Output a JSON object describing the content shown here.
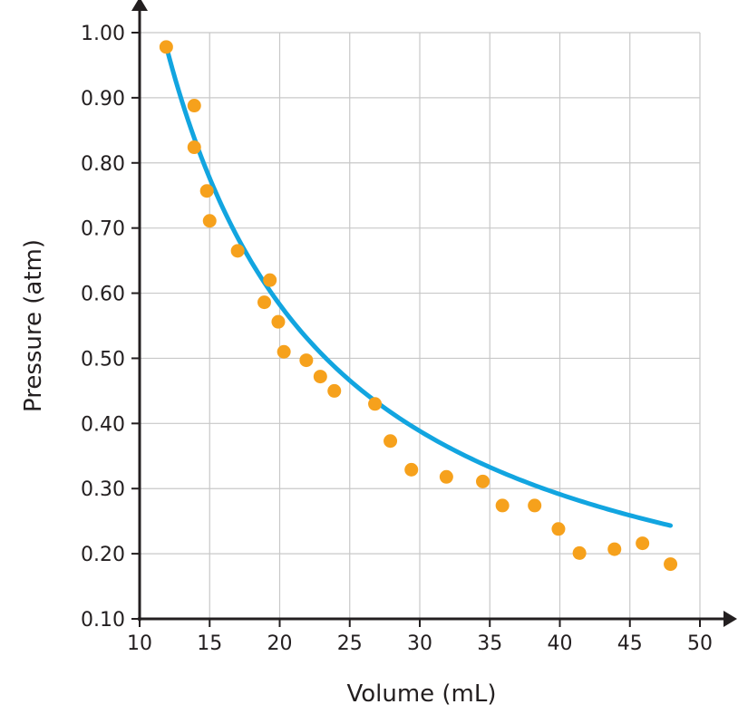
{
  "chart_data": {
    "type": "scatter",
    "xlabel": "Volume (mL)",
    "ylabel": "Pressure (atm)",
    "xlim": [
      10,
      50
    ],
    "ylim": [
      0.1,
      1.0
    ],
    "x_ticks": [
      "10",
      "15",
      "20",
      "25",
      "30",
      "35",
      "40",
      "45",
      "50"
    ],
    "y_ticks": [
      "0.10",
      "0.20",
      "0.30",
      "0.40",
      "0.50",
      "0.60",
      "0.70",
      "0.80",
      "0.90",
      "1.00"
    ],
    "grid": true,
    "points": [
      [
        11.9,
        0.978
      ],
      [
        13.9,
        0.888
      ],
      [
        13.9,
        0.824
      ],
      [
        14.8,
        0.757
      ],
      [
        15.0,
        0.711
      ],
      [
        17.0,
        0.665
      ],
      [
        18.9,
        0.586
      ],
      [
        19.3,
        0.62
      ],
      [
        19.9,
        0.556
      ],
      [
        20.3,
        0.51
      ],
      [
        21.9,
        0.497
      ],
      [
        22.9,
        0.472
      ],
      [
        23.9,
        0.45
      ],
      [
        26.8,
        0.43
      ],
      [
        27.9,
        0.373
      ],
      [
        29.4,
        0.329
      ],
      [
        31.9,
        0.318
      ],
      [
        34.5,
        0.311
      ],
      [
        35.9,
        0.274
      ],
      [
        38.2,
        0.274
      ],
      [
        39.9,
        0.238
      ],
      [
        41.4,
        0.201
      ],
      [
        43.9,
        0.207
      ],
      [
        45.9,
        0.216
      ],
      [
        47.9,
        0.184
      ]
    ],
    "fit_curve": {
      "equation": "P = 11.65 / V",
      "x_range": [
        11.9,
        47.9
      ]
    },
    "colors": {
      "points": "#f6a11c",
      "curve": "#12a5e0",
      "grid": "#c8c8c8",
      "axis": "#231f20"
    }
  }
}
